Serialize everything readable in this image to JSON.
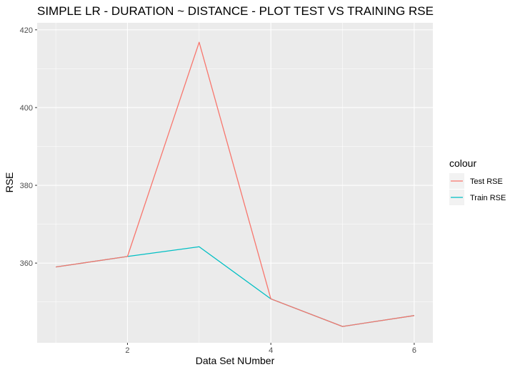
{
  "chart_data": {
    "type": "line",
    "title": "SIMPLE LR - DURATION ~ DISTANCE - PLOT TEST VS TRAINING RSE",
    "xlabel": "Data Set NUmber",
    "ylabel": "RSE",
    "xlim": [
      0.74,
      6.26
    ],
    "ylim": [
      339.5,
      421.8
    ],
    "x_ticks": [
      2,
      4,
      6
    ],
    "x_tick_labels": [
      "2",
      "4",
      "6"
    ],
    "y_ticks": [
      360,
      380,
      400,
      420
    ],
    "y_tick_labels": [
      "360",
      "380",
      "400",
      "420"
    ],
    "x": [
      1,
      2,
      3,
      4,
      5,
      6
    ],
    "series": [
      {
        "name": "Test RSE",
        "color": "#F8766D",
        "values": [
          359.0,
          361.7,
          416.8,
          350.8,
          343.7,
          346.5
        ]
      },
      {
        "name": "Train RSE",
        "color": "#00BFC4",
        "values": [
          359.0,
          361.7,
          364.2,
          350.8,
          343.7,
          346.5
        ]
      }
    ],
    "legend": {
      "title": "colour",
      "position": "right"
    },
    "grid": true,
    "panel_background": "#EBEBEB"
  }
}
